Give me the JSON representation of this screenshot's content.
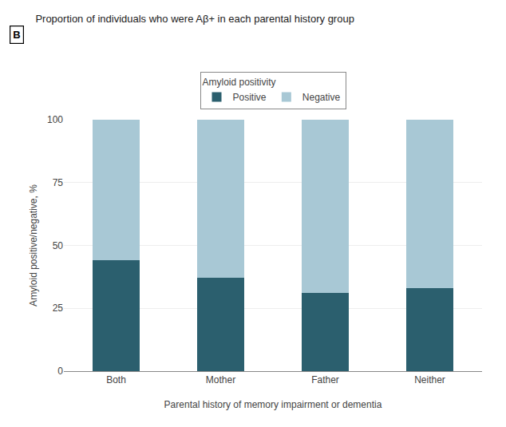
{
  "chart_data": {
    "type": "bar",
    "stacked": true,
    "title": "Proportion of individuals who were Aβ+ in each parental history group",
    "annotations": [
      "B"
    ],
    "xlabel": "Parental history of memory impairment or dementia",
    "ylabel": "Amyloid positive/negative, %",
    "categories": [
      "Both",
      "Mother",
      "Father",
      "Neither"
    ],
    "series": [
      {
        "name": "Positive",
        "color": "#2b5f6e",
        "values": [
          44,
          37,
          31,
          33
        ]
      },
      {
        "name": "Negative",
        "color": "#a8c8d5",
        "values": [
          56,
          63,
          69,
          67
        ]
      }
    ],
    "legend_title": "Amyloid positivity",
    "legend": "top",
    "ylim": [
      0,
      100
    ],
    "yticks": [
      0,
      25,
      50,
      75,
      100
    ],
    "grid": true
  }
}
